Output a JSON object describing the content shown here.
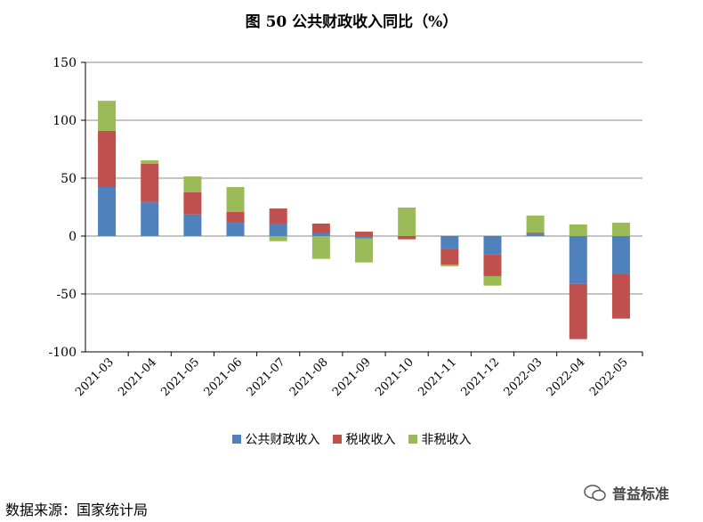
{
  "chart_data": {
    "type": "bar",
    "stacked": true,
    "title": "图 50  公共财政收入同比（%）",
    "xlabel": "",
    "ylabel": "",
    "ylim": [
      -100,
      150
    ],
    "yticks": [
      -100,
      -50,
      0,
      50,
      100,
      150
    ],
    "grid": true,
    "legend_position": "bottom",
    "categories": [
      "2021-03",
      "2021-04",
      "2021-05",
      "2021-06",
      "2021-07",
      "2021-08",
      "2021-09",
      "2021-10",
      "2021-11",
      "2021-12",
      "2022-03",
      "2022-04",
      "2022-05"
    ],
    "series": [
      {
        "name": "公共财政收入",
        "color": "#4f81bd",
        "values": [
          42.3,
          29.5,
          18.7,
          11.5,
          10.8,
          2.3,
          -2.0,
          0,
          -11.5,
          -15.9,
          2.0,
          -41.3,
          -33.1
        ]
      },
      {
        "name": "税收收入",
        "color": "#c0504d",
        "values": [
          48.5,
          32.8,
          19.0,
          9.3,
          13.0,
          8.5,
          3.8,
          -2.8,
          -13.1,
          -18.7,
          1.0,
          -47.7,
          -38.2
        ]
      },
      {
        "name": "非税收入",
        "color": "#9bbb59",
        "values": [
          26.0,
          3.1,
          13.8,
          21.5,
          -4.4,
          -19.7,
          -20.8,
          24.6,
          -1.5,
          -8.2,
          14.7,
          10.0,
          11.5
        ]
      }
    ]
  },
  "footer": {
    "source": "数据来源：国家统计局",
    "watermark": "普益标准"
  }
}
